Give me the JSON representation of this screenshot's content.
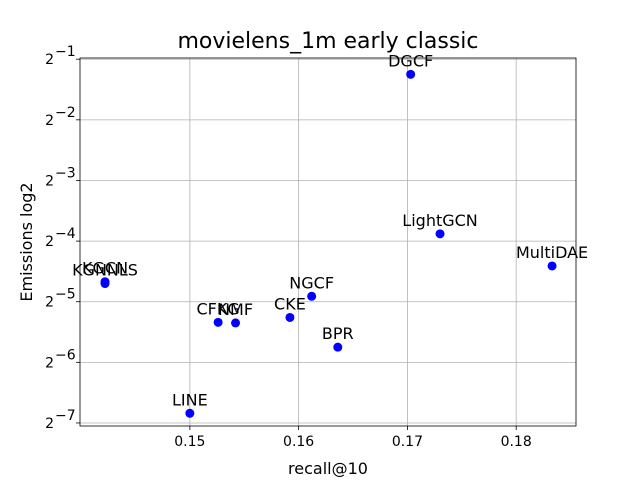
{
  "chart_data": {
    "type": "scatter",
    "title": "movielens_1m early classic",
    "xlabel": "recall@10",
    "ylabel": "Emissions log2",
    "xlim": [
      0.1399,
      0.1855
    ],
    "ylim": [
      -7.05,
      -0.98
    ],
    "yscale": "log2",
    "grid": true,
    "marker_color": "#0000ff",
    "x_ticks": [
      {
        "value": 0.15,
        "label": "0.15"
      },
      {
        "value": 0.16,
        "label": "0.16"
      },
      {
        "value": 0.17,
        "label": "0.17"
      },
      {
        "value": 0.18,
        "label": "0.18"
      }
    ],
    "y_ticks": [
      {
        "value": -1,
        "base": "2",
        "exp": "−1"
      },
      {
        "value": -2,
        "base": "2",
        "exp": "−2"
      },
      {
        "value": -3,
        "base": "2",
        "exp": "−3"
      },
      {
        "value": -4,
        "base": "2",
        "exp": "−4"
      },
      {
        "value": -5,
        "base": "2",
        "exp": "−5"
      },
      {
        "value": -6,
        "base": "2",
        "exp": "−6"
      },
      {
        "value": -7,
        "base": "2",
        "exp": "−7"
      }
    ],
    "points": [
      {
        "label": "DGCF",
        "x": 0.1703,
        "y": -1.25
      },
      {
        "label": "LightGCN",
        "x": 0.173,
        "y": -3.88
      },
      {
        "label": "MultiDAE",
        "x": 0.1833,
        "y": -4.41
      },
      {
        "label": "NGCF",
        "x": 0.1612,
        "y": -4.91
      },
      {
        "label": "CKE",
        "x": 0.1592,
        "y": -5.26
      },
      {
        "label": "CFKG",
        "x": 0.1526,
        "y": -5.34
      },
      {
        "label": "NMF",
        "x": 0.1542,
        "y": -5.35
      },
      {
        "label": "BPR",
        "x": 0.1636,
        "y": -5.75
      },
      {
        "label": "KGCN",
        "x": 0.1422,
        "y": -4.67
      },
      {
        "label": "KGNNLS",
        "x": 0.1422,
        "y": -4.7
      },
      {
        "label": "LINE",
        "x": 0.15,
        "y": -6.84
      }
    ]
  }
}
